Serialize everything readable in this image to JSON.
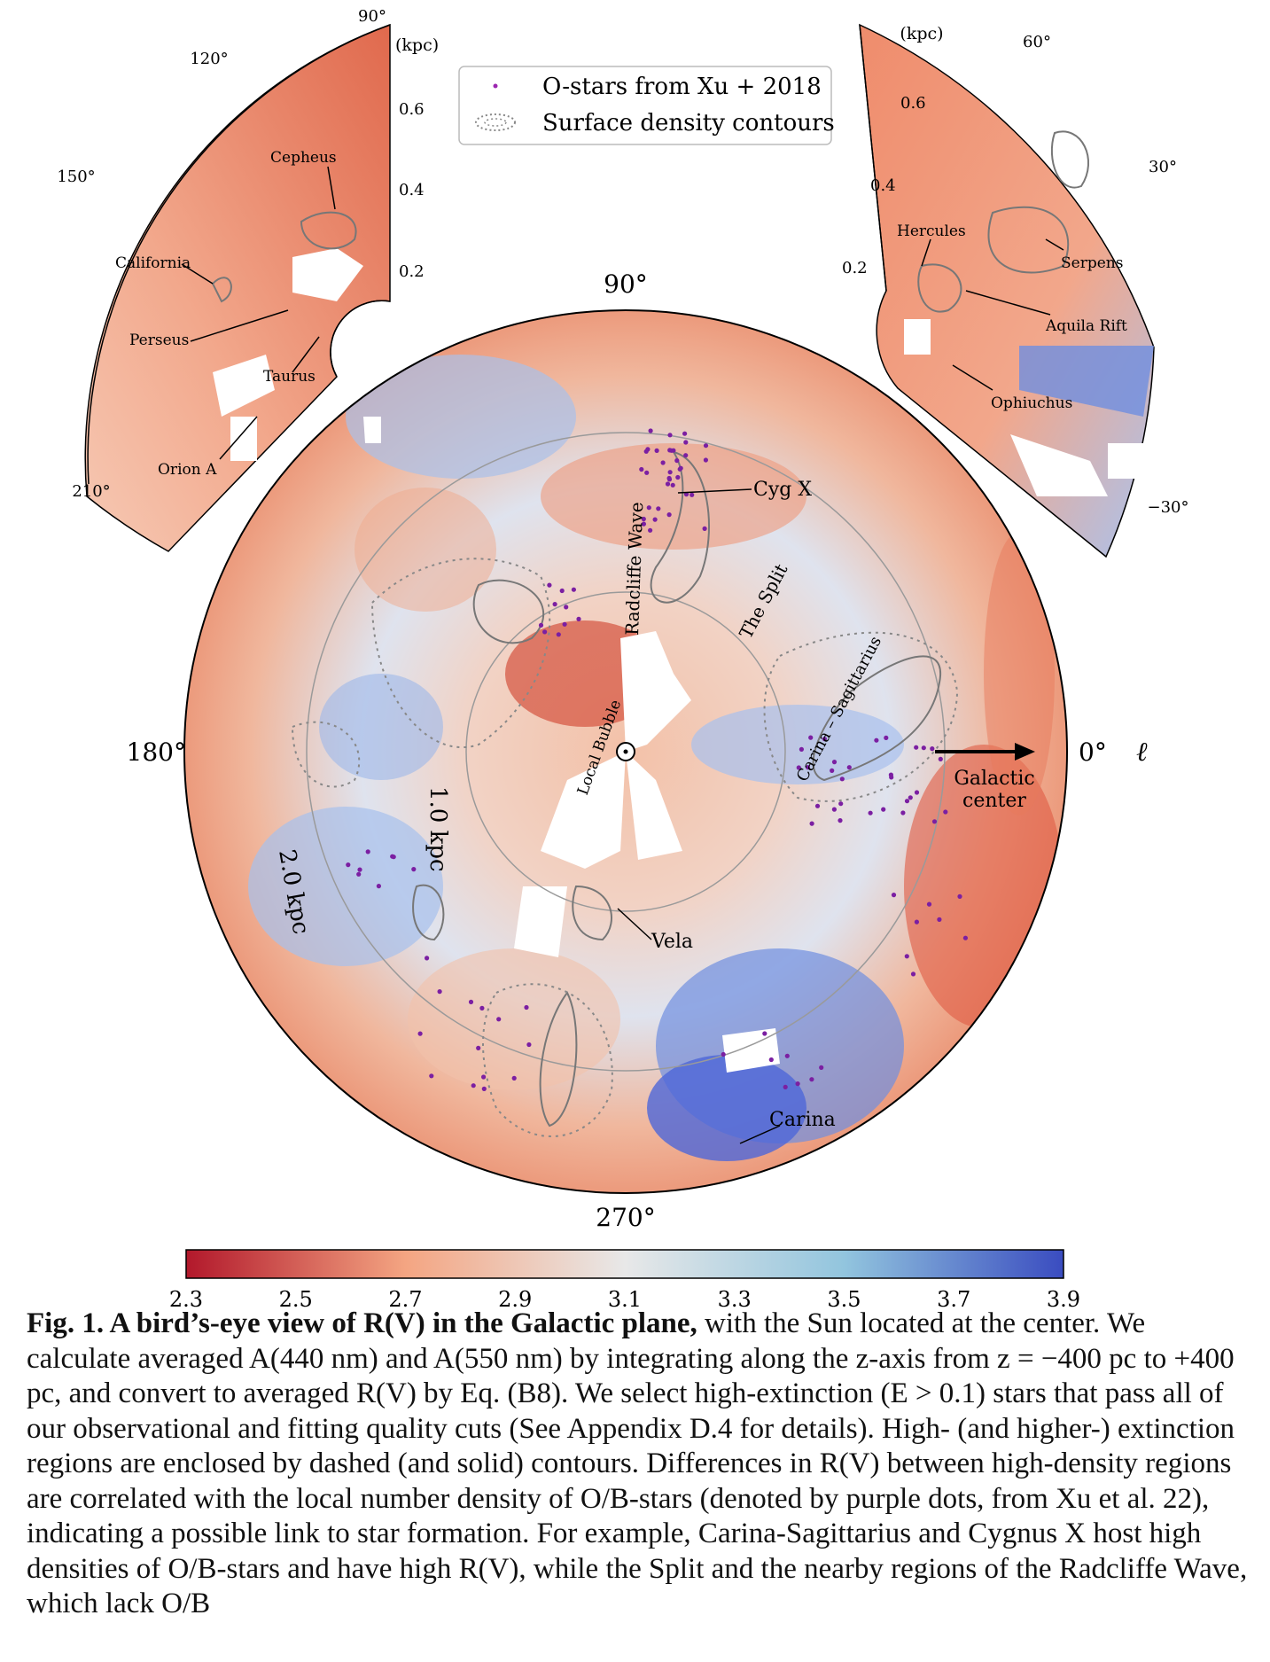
{
  "figure": {
    "colorbar": {
      "colors": [
        "#b2182b",
        "#f4a582",
        "#e8e8e8",
        "#92c5de",
        "#3a4cc0"
      ],
      "ticks": [
        "2.3",
        "2.5",
        "2.7",
        "2.9",
        "3.1",
        "3.3",
        "3.5",
        "3.7",
        "3.9"
      ]
    },
    "legend": {
      "item1": "O-stars from Xu + 2018",
      "item2": "Surface density contours"
    },
    "main": {
      "angle_90": "90°",
      "angle_180": "180°",
      "angle_0": "0°",
      "angle_270": "270°",
      "ell": "ℓ",
      "ring_1": "1.0 kpc",
      "ring_2": "2.0 kpc",
      "labels": {
        "cyg_x": "Cyg X",
        "radcliffe_wave": "Radcliffe Wave",
        "the_split": "The Split",
        "carina_sagittarius": "Carina – Sagittarius",
        "local_bubble": "Local Bubble",
        "galactic_center_1": "Galactic",
        "galactic_center_2": "center",
        "vela": "Vela",
        "carina": "Carina"
      }
    },
    "left_inset": {
      "angle_90": "90°",
      "angle_120": "120°",
      "angle_150": "150°",
      "angle_210": "210°",
      "kpc": "(kpc)",
      "r06": "0.6",
      "r04": "0.4",
      "r02": "0.2",
      "labels": {
        "cepheus": "Cepheus",
        "california": "California",
        "perseus": "Perseus",
        "taurus": "Taurus",
        "orion_a": "Orion A"
      }
    },
    "right_inset": {
      "kpc": "(kpc)",
      "angle_60": "60°",
      "angle_30": "30°",
      "angle_m30": "−30°",
      "r06": "0.6",
      "r04": "0.4",
      "r02": "0.2",
      "labels": {
        "hercules": "Hercules",
        "serpens": "Serpens",
        "aquila_rift": "Aquila Rift",
        "ophiuchus": "Ophiuchus"
      }
    }
  },
  "caption": {
    "bold": "Fig. 1. A bird’s-eye view of R(V) in the Galactic plane,",
    "text": " with the Sun located at the center. We calculate averaged A(440 nm) and A(550 nm) by integrating along the z-axis from z = −400 pc to +400 pc, and convert to averaged R(V) by Eq. (B8). We select high-extinction (E > 0.1) stars that pass all of our observational and fitting quality cuts (See Appendix D.4 for details). High- (and higher-) extinction regions are enclosed by dashed (and solid) contours. Differences in R(V) between high-density regions are correlated with the local number density of O/B-stars (denoted by purple dots, from Xu et al. 22), indicating a possible link to star formation. For example, Carina-Sagittarius and Cygnus X host high densities of O/B-stars and have high R(V), while the Split and the nearby regions of the Radcliffe Wave, which lack O/B"
  }
}
